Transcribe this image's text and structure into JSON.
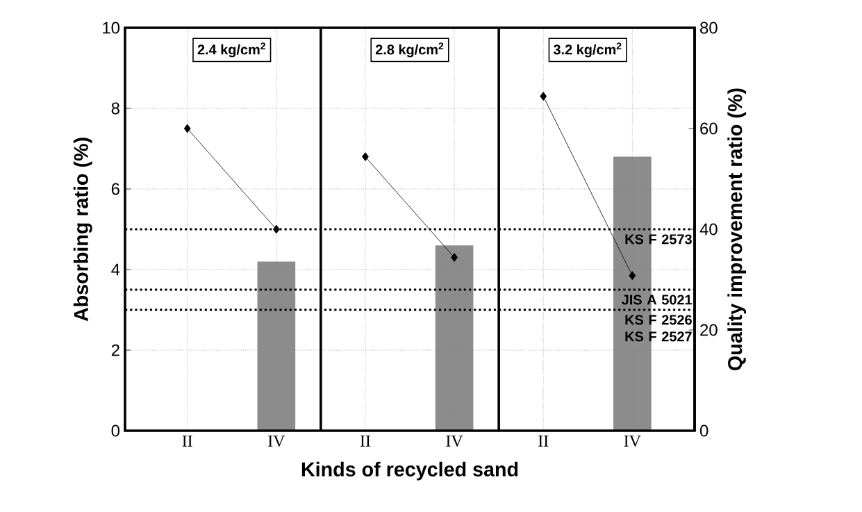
{
  "chart_data": {
    "type": "line",
    "xlabel": "Kinds of recycled sand",
    "ylabel": "Absorbing ratio (%)",
    "y2label": "Quality improvement ratio (%)",
    "categories": [
      "II",
      "IV",
      "II",
      "IV",
      "II",
      "IV"
    ],
    "annotations": [
      "2.4 kg/cm$^{2}$",
      "2.8 kg/cm$^{2}$",
      "3.2 kg/cm$^{2}$"
    ],
    "series": [
      {
        "type": "bar",
        "axis": "y2",
        "color": "#8c8c8c",
        "values": [
          null,
          33.6,
          null,
          36.8,
          null,
          54.4
        ]
      },
      {
        "color": "#000000",
        "values": [
          7.5,
          5.0,
          null,
          null,
          null,
          null
        ]
      },
      {
        "color": "#000000",
        "values": [
          null,
          null,
          6.8,
          4.3,
          null,
          null
        ]
      },
      {
        "color": "#000000",
        "values": [
          null,
          null,
          null,
          null,
          8.3,
          3.85
        ]
      }
    ],
    "ylim": [
      0,
      10
    ],
    "yticks": [
      0,
      2,
      4,
      6,
      8,
      10
    ],
    "y2lim": [
      0,
      80
    ],
    "y2ticks": [
      0,
      20,
      40,
      60,
      80
    ],
    "ref_lines": [
      {
        "axis": "y",
        "value": 5,
        "label": "KS F 2573"
      },
      {
        "axis": "y",
        "value": 3.5,
        "label": "JIS A 5021"
      },
      {
        "axis": "y",
        "value": 3,
        "label": "KS F 2526 KS F 2527"
      }
    ],
    "grid": true,
    "marker": "diamond",
    "line_style": "solid"
  }
}
